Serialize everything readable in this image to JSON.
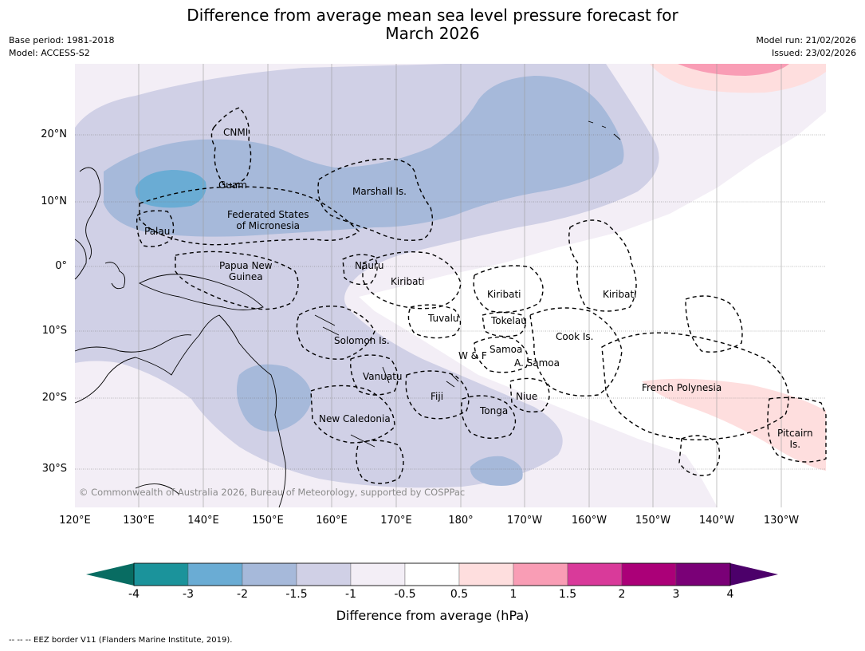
{
  "header": {
    "title_line1": "Difference from average mean sea level pressure forecast for",
    "title_line2": "March 2026",
    "base_period": "Base period: 1981-2018",
    "model": "Model: ACCESS-S2",
    "model_run": "Model run: 21/02/2026",
    "issued": "Issued: 23/02/2026"
  },
  "map": {
    "lat_labels": [
      "20°N",
      "10°N",
      "0°",
      "10°S",
      "20°S",
      "30°S"
    ],
    "lon_labels": [
      "120°E",
      "130°E",
      "140°E",
      "150°E",
      "160°E",
      "170°E",
      "180°",
      "170°W",
      "160°W",
      "150°W",
      "140°W",
      "130°W"
    ],
    "places": {
      "cnmi": "CNMI",
      "guam": "Guam",
      "marshall": "Marshall Is.",
      "fsm_1": "Federated States",
      "fsm_2": "of Micronesia",
      "palau": "Palau",
      "png_1": "Papua New",
      "png_2": "Guinea",
      "nauru": "Nauru",
      "kiribati_w": "Kiribati",
      "kiribati_c": "Kiribati",
      "kiribati_e": "Kiribati",
      "tuvalu": "Tuvalu",
      "tokelau": "Tokelau",
      "cook": "Cook Is.",
      "solomon": "Solomon Is.",
      "samoa": "Samoa",
      "wf": "W & F",
      "asamoa": "A. Samoa",
      "vanuatu": "Vanuatu",
      "fiji": "Fiji",
      "niue": "Niue",
      "tonga": "Tonga",
      "newcal": "New Caledonia",
      "frpoly": "French Polynesia",
      "pitcairn_1": "Pitcairn",
      "pitcairn_2": "Is."
    },
    "copyright": "© Commonwealth of Australia 2026, Bureau of Meteorology, supported by COSPPac"
  },
  "colorbar": {
    "ticks": [
      "-4",
      "-3",
      "-2",
      "-1.5",
      "-1",
      "-0.5",
      "0.5",
      "1",
      "1.5",
      "2",
      "3",
      "4"
    ],
    "colors": [
      "#086c62",
      "#1b939b",
      "#6aacd4",
      "#a6b9da",
      "#d0d0e6",
      "#f3eef6",
      "#ffffff",
      "#fedede",
      "#f99db5",
      "#d93a9a",
      "#ab0078",
      "#7a0077",
      "#4c006a"
    ],
    "label": "Difference from average (hPa)"
  },
  "footer": {
    "legend": "--  --  -- EEZ border V11 (Flanders Marine Institute, 2019)."
  }
}
